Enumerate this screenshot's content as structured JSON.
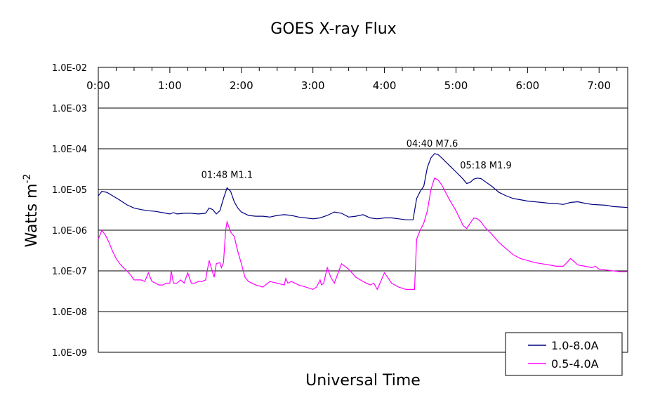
{
  "chart_data": {
    "type": "line",
    "title": "GOES X-ray Flux",
    "xlabel": "Universal Time",
    "ylabel": "Watts m",
    "ylabel_superscript": "-2",
    "y_scale": "log",
    "ylim": [
      1e-09,
      0.01
    ],
    "xlim_hours": [
      0,
      7.4
    ],
    "x_ticks": [
      "0:00",
      "1:00",
      "2:00",
      "3:00",
      "4:00",
      "5:00",
      "6:00",
      "7:00"
    ],
    "y_ticks": [
      "1.0E-02",
      "1.0E-03",
      "1.0E-04",
      "1.0E-05",
      "1.0E-06",
      "1.0E-07",
      "1.0E-08",
      "1.0E-09"
    ],
    "grid": "horizontal",
    "legend_position": "bottom-right",
    "colors": {
      "long": "#000080",
      "short": "#ff00ff"
    },
    "series": [
      {
        "name": "1.0-8.0A",
        "x": [
          0.0,
          0.05,
          0.12,
          0.2,
          0.3,
          0.4,
          0.5,
          0.6,
          0.7,
          0.8,
          0.9,
          1.0,
          1.05,
          1.1,
          1.2,
          1.3,
          1.4,
          1.5,
          1.55,
          1.6,
          1.65,
          1.7,
          1.75,
          1.8,
          1.85,
          1.9,
          1.95,
          2.0,
          2.1,
          2.2,
          2.3,
          2.4,
          2.5,
          2.6,
          2.7,
          2.8,
          2.9,
          3.0,
          3.1,
          3.2,
          3.3,
          3.4,
          3.5,
          3.6,
          3.7,
          3.8,
          3.9,
          4.0,
          4.1,
          4.2,
          4.3,
          4.4,
          4.45,
          4.5,
          4.55,
          4.6,
          4.65,
          4.7,
          4.75,
          4.8,
          4.9,
          5.0,
          5.1,
          5.15,
          5.2,
          5.25,
          5.3,
          5.35,
          5.4,
          5.5,
          5.6,
          5.7,
          5.8,
          5.9,
          6.0,
          6.1,
          6.2,
          6.3,
          6.4,
          6.5,
          6.6,
          6.7,
          6.8,
          6.9,
          7.0,
          7.1,
          7.2,
          7.3,
          7.4
        ],
        "y": [
          7e-06,
          9e-06,
          8.5e-06,
          7e-06,
          5.5e-06,
          4.2e-06,
          3.5e-06,
          3.2e-06,
          3e-06,
          2.9e-06,
          2.7e-06,
          2.5e-06,
          2.7e-06,
          2.5e-06,
          2.6e-06,
          2.6e-06,
          2.5e-06,
          2.6e-06,
          3.5e-06,
          3.2e-06,
          2.5e-06,
          3e-06,
          6e-06,
          1.1e-05,
          9e-06,
          5e-06,
          3.5e-06,
          2.8e-06,
          2.3e-06,
          2.2e-06,
          2.2e-06,
          2.1e-06,
          2.3e-06,
          2.4e-06,
          2.3e-06,
          2.1e-06,
          2e-06,
          1.9e-06,
          2e-06,
          2.3e-06,
          2.8e-06,
          2.6e-06,
          2.1e-06,
          2.2e-06,
          2.4e-06,
          2e-06,
          1.9e-06,
          2e-06,
          2e-06,
          1.9e-06,
          1.8e-06,
          1.8e-06,
          6e-06,
          9e-06,
          1.2e-05,
          3.5e-05,
          6e-05,
          7.6e-05,
          7.2e-05,
          6e-05,
          4e-05,
          2.7e-05,
          1.8e-05,
          1.4e-05,
          1.5e-05,
          1.8e-05,
          1.9e-05,
          1.85e-05,
          1.6e-05,
          1.2e-05,
          8.5e-06,
          7e-06,
          6e-06,
          5.6e-06,
          5.2e-06,
          5e-06,
          4.8e-06,
          4.6e-06,
          4.5e-06,
          4.3e-06,
          4.8e-06,
          5e-06,
          4.6e-06,
          4.3e-06,
          4.2e-06,
          4.1e-06,
          3.8e-06,
          3.7e-06,
          3.6e-06
        ]
      },
      {
        "name": "0.5-4.0A",
        "x": [
          0.0,
          0.05,
          0.1,
          0.15,
          0.2,
          0.25,
          0.3,
          0.35,
          0.4,
          0.45,
          0.5,
          0.55,
          0.6,
          0.65,
          0.7,
          0.75,
          0.8,
          0.85,
          0.9,
          0.95,
          1.0,
          1.02,
          1.05,
          1.1,
          1.15,
          1.2,
          1.25,
          1.3,
          1.35,
          1.4,
          1.45,
          1.5,
          1.55,
          1.6,
          1.62,
          1.65,
          1.7,
          1.72,
          1.75,
          1.78,
          1.8,
          1.85,
          1.9,
          1.95,
          2.0,
          2.05,
          2.1,
          2.2,
          2.3,
          2.4,
          2.5,
          2.6,
          2.62,
          2.65,
          2.7,
          2.8,
          2.9,
          3.0,
          3.05,
          3.1,
          3.12,
          3.15,
          3.2,
          3.25,
          3.3,
          3.4,
          3.5,
          3.6,
          3.7,
          3.8,
          3.85,
          3.9,
          4.0,
          4.1,
          4.2,
          4.3,
          4.4,
          4.42,
          4.45,
          4.5,
          4.55,
          4.6,
          4.65,
          4.7,
          4.75,
          4.8,
          4.9,
          5.0,
          5.1,
          5.15,
          5.2,
          5.25,
          5.3,
          5.35,
          5.4,
          5.5,
          5.6,
          5.7,
          5.8,
          5.9,
          6.0,
          6.1,
          6.2,
          6.3,
          6.4,
          6.5,
          6.55,
          6.6,
          6.65,
          6.7,
          6.8,
          6.9,
          6.95,
          7.0,
          7.1,
          7.2,
          7.3,
          7.4
        ],
        "y": [
          6e-07,
          1e-06,
          7.5e-07,
          5e-07,
          3e-07,
          2e-07,
          1.5e-07,
          1.2e-07,
          1e-07,
          8e-08,
          6e-08,
          6e-08,
          6e-08,
          5.5e-08,
          9e-08,
          5.5e-08,
          5e-08,
          4.5e-08,
          4.5e-08,
          5e-08,
          5e-08,
          1e-07,
          5e-08,
          5e-08,
          6e-08,
          5e-08,
          9e-08,
          5e-08,
          5e-08,
          5.5e-08,
          5.5e-08,
          6e-08,
          1.8e-07,
          9e-08,
          7e-08,
          1.5e-07,
          1.6e-07,
          1.2e-07,
          1.6e-07,
          1e-06,
          1.6e-06,
          9e-07,
          7e-07,
          3e-07,
          1.5e-07,
          7e-08,
          5.5e-08,
          4.5e-08,
          4e-08,
          5.5e-08,
          5e-08,
          4.5e-08,
          6.5e-08,
          5e-08,
          5.5e-08,
          4.5e-08,
          4e-08,
          3.5e-08,
          4e-08,
          6e-08,
          4.5e-08,
          5e-08,
          1.2e-07,
          7e-08,
          5e-08,
          1.5e-07,
          1.1e-07,
          7e-08,
          5.5e-08,
          4.5e-08,
          5e-08,
          3.5e-08,
          9e-08,
          5e-08,
          4e-08,
          3.5e-08,
          3.5e-08,
          3.5e-08,
          6e-07,
          1e-06,
          1.5e-06,
          3e-06,
          1e-05,
          1.9e-05,
          1.7e-05,
          1.3e-05,
          6e-06,
          3e-06,
          1.3e-06,
          1.1e-06,
          1.5e-06,
          2e-06,
          1.9e-06,
          1.6e-06,
          1.2e-06,
          8e-07,
          5e-07,
          3.5e-07,
          2.5e-07,
          2e-07,
          1.8e-07,
          1.6e-07,
          1.5e-07,
          1.4e-07,
          1.3e-07,
          1.3e-07,
          1.6e-07,
          2e-07,
          1.7e-07,
          1.4e-07,
          1.3e-07,
          1.2e-07,
          1.3e-07,
          1.1e-07,
          1.05e-07,
          1e-07,
          9.5e-08,
          9.5e-08
        ]
      }
    ],
    "annotations": [
      {
        "text": "01:48  M1.1",
        "x": 1.8,
        "y": 1.1e-05
      },
      {
        "text": "04:40  M7.6",
        "x": 4.667,
        "y": 7.6e-05
      },
      {
        "text": "05:18  M1.9",
        "x": 5.3,
        "y": 1.9e-05
      }
    ]
  }
}
